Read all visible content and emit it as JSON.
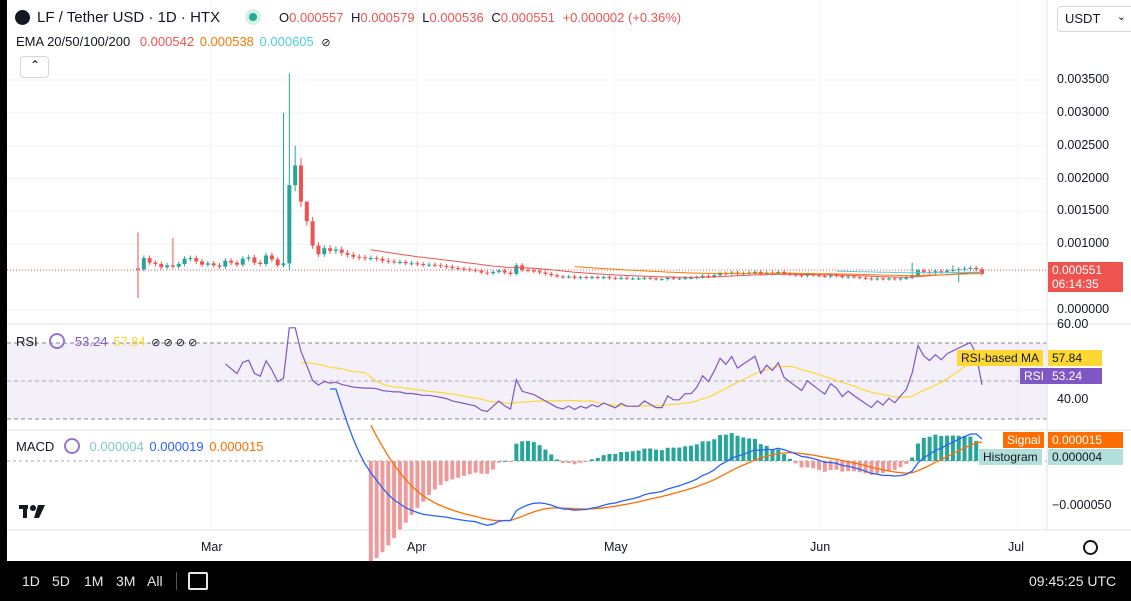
{
  "header": {
    "symbol": "LF / Tether USD · 1D · HTX",
    "o_label": "O",
    "o": "0.000557",
    "h_label": "H",
    "h": "0.000579",
    "l_label": "L",
    "l": "0.000536",
    "c_label": "C",
    "c": "0.000551",
    "change": "+0.000002 (+0.36%)",
    "currency": "USDT"
  },
  "ema": {
    "label": "EMA 20/50/100/200",
    "v1": "0.000542",
    "v2": "0.000538",
    "v3": "0.000605",
    "eye_icon": "eye-slash-icon"
  },
  "price_axis": [
    "0.003500",
    "0.003000",
    "0.002500",
    "0.002000",
    "0.001500",
    "0.001000",
    "0.000000"
  ],
  "price_tag": {
    "price": "0.000551",
    "countdown": "06:14:35"
  },
  "rsi": {
    "label": "RSI",
    "value": "53.24",
    "ma": "57.84",
    "axis_top": "60.00",
    "axis_mid": "40.00",
    "ma_tag_label": "RSI-based MA",
    "ma_tag_value": "57.84",
    "rsi_tag_label": "RSI",
    "rsi_tag_value": "53.24"
  },
  "macd": {
    "label": "MACD",
    "hist": "0.000004",
    "macd": "0.000019",
    "signal": "0.000015",
    "axis_low": "−0.000050",
    "signal_tag_label": "Signal",
    "signal_tag_value": "0.000015",
    "hist_tag_label": "Histogram",
    "hist_tag_value": "0.000004"
  },
  "time_axis": [
    "Mar",
    "Apr",
    "May",
    "Jun",
    "Jul"
  ],
  "bottom": {
    "ranges": [
      "1D",
      "5D",
      "1M",
      "3M",
      "All"
    ],
    "clock": "09:45:25 UTC"
  },
  "colors": {
    "up": "#26a69a",
    "down": "#ef5350",
    "ema20": "#ef5350",
    "ema50": "#f57c00",
    "ema100": "#4dd0e1",
    "rsi": "#7e57c2",
    "rsi_ma": "#fdd835",
    "macd": "#2962ff",
    "signal": "#ff6d00"
  },
  "chart_data": [
    {
      "type": "candlestick",
      "title": "LF / Tether USD · 1D · HTX",
      "ylim": [
        0,
        0.0037
      ],
      "x_ticks": [
        "Mar",
        "Apr",
        "May",
        "Jun",
        "Jul"
      ],
      "series": [
        {
          "name": "EMA 20",
          "last": 0.000542
        },
        {
          "name": "EMA 50",
          "last": 0.000538
        },
        {
          "name": "EMA 100",
          "last": 0.000605
        }
      ],
      "ohlc_last": {
        "o": 0.000557,
        "h": 0.000579,
        "l": 0.000536,
        "c": 0.000551
      },
      "approx_closes": [
        0.00062,
        0.00079,
        0.00072,
        0.0007,
        0.00065,
        0.00068,
        0.00066,
        0.0007,
        0.00078,
        0.00079,
        0.00074,
        0.00069,
        0.00071,
        0.00068,
        0.00066,
        0.00075,
        0.00072,
        0.00069,
        0.00078,
        0.0008,
        0.00072,
        0.0007,
        0.00083,
        0.00077,
        0.00068,
        0.00071,
        0.0019,
        0.0022,
        0.00165,
        0.00135,
        0.00098,
        0.00085,
        0.00094,
        0.0009,
        0.00092,
        0.00087,
        0.00084,
        0.00081,
        0.0008,
        0.00079,
        0.00079,
        0.00078,
        0.00075,
        0.00074,
        0.00073,
        0.00073,
        0.00071,
        0.00071,
        0.0007,
        0.00069,
        0.00069,
        0.00068,
        0.00067,
        0.00066,
        0.00064,
        0.00063,
        0.00062,
        0.00061,
        0.0006,
        0.00057,
        0.00056,
        0.00058,
        0.0006,
        0.00057,
        0.00055,
        0.00068,
        0.00061,
        0.0006,
        0.00059,
        0.00057,
        0.00055,
        0.00053,
        0.00051,
        0.0005,
        0.00051,
        0.00049,
        0.0005,
        0.00049,
        0.0005,
        0.00049,
        0.0005,
        0.00049,
        0.00048,
        0.00049,
        0.00048,
        0.00048,
        0.00048,
        0.00049,
        0.00048,
        0.00047,
        0.00047,
        0.00049,
        0.00048,
        0.00048,
        0.00049,
        0.00049,
        0.0005,
        0.00052,
        0.00051,
        0.00053,
        0.00056,
        0.00055,
        0.00057,
        0.00055,
        0.00056,
        0.00057,
        0.00058,
        0.00055,
        0.00057,
        0.00056,
        0.00058,
        0.00055,
        0.00054,
        0.00053,
        0.00052,
        0.00054,
        0.00053,
        0.00052,
        0.00051,
        0.00053,
        0.00052,
        0.0005,
        0.00051,
        0.0005,
        0.00049,
        0.00048,
        0.00047,
        0.00048,
        0.00047,
        0.00048,
        0.00047,
        0.00048,
        0.00049,
        0.00052,
        0.0006,
        0.00058,
        0.00057,
        0.00059,
        0.00058,
        0.0006,
        0.00061,
        0.00062,
        0.00063,
        0.00064,
        0.00062,
        0.000551
      ]
    },
    {
      "type": "line",
      "title": "RSI",
      "ylim": [
        30,
        62
      ],
      "y_ticks": [
        40,
        60
      ],
      "bands": [
        30,
        50,
        70
      ],
      "series": [
        {
          "name": "RSI",
          "last": 53.24
        },
        {
          "name": "RSI-based MA",
          "last": 57.84
        }
      ]
    },
    {
      "type": "line",
      "title": "MACD",
      "y_ticks": [
        -5e-05
      ],
      "series": [
        {
          "name": "MACD",
          "last": 1.9e-05
        },
        {
          "name": "Signal",
          "last": 1.5e-05
        },
        {
          "name": "Histogram",
          "last": 4e-06
        }
      ]
    }
  ]
}
